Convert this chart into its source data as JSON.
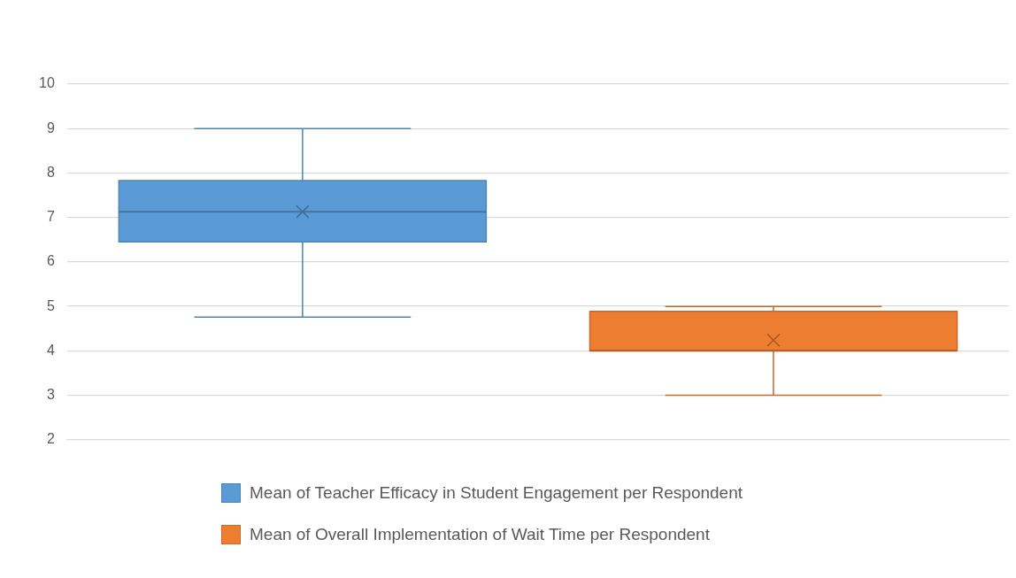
{
  "chart_data": {
    "type": "box",
    "categories": [
      null
    ],
    "series": [
      {
        "name": "Mean of Teacher Efficacy in Student Engagement per Respondent",
        "color": "#5b9bd5",
        "boxes": [
          {
            "low": 4.76,
            "q1": 6.45,
            "median": 7.13,
            "q3": 7.83,
            "high": 9.0,
            "mean": 7.13
          }
        ]
      },
      {
        "name": "Mean of Overall Implementation of Wait Time per Respondent",
        "color": "#ed7d31",
        "boxes": [
          {
            "low": 3.0,
            "q1": 4.0,
            "median": 4.0,
            "q3": 4.89,
            "high": 5.0,
            "mean": 4.24
          }
        ]
      }
    ],
    "ylim": [
      2,
      10
    ],
    "yticks": [
      2,
      3,
      4,
      5,
      6,
      7,
      8,
      9,
      10
    ],
    "grid": "y",
    "legend": "bottom",
    "marker": "cross"
  }
}
